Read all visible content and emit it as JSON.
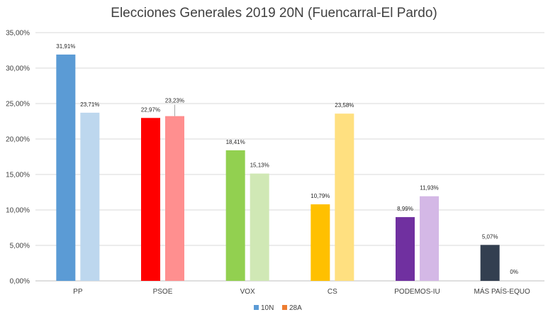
{
  "chart_data": {
    "type": "bar",
    "title": "Elecciones Generales 2019 20N (Fuencarral-El Pardo)",
    "categories": [
      "PP",
      "PSOE",
      "VOX",
      "CS",
      "PODEMOS-IU",
      "MÁS PAÍS-EQUO"
    ],
    "series": [
      {
        "name": "10N",
        "values": [
          31.91,
          22.97,
          18.41,
          10.79,
          8.99,
          5.07
        ],
        "labels": [
          "31,91%",
          "22,97%",
          "18,41%",
          "10,79%",
          "8,99%",
          "5,07%"
        ]
      },
      {
        "name": "28A",
        "values": [
          23.71,
          23.23,
          15.13,
          23.58,
          11.93,
          0
        ],
        "labels": [
          "23,71%",
          "23,23%",
          "15,13%",
          "23,58%",
          "11,93%",
          "0%"
        ]
      }
    ],
    "colors_10N": [
      "#5b9bd5",
      "#ff0000",
      "#92d050",
      "#ffc000",
      "#7030a0",
      "#333f50"
    ],
    "colors_28A": [
      "#bdd7ee",
      "#ff8f8f",
      "#d0e8b5",
      "#ffe080",
      "#d4b8e6",
      "#adb9ca"
    ],
    "legend_colors": [
      "#5b9bd5",
      "#ed7d31"
    ],
    "ylim": [
      0,
      35
    ],
    "yticks": [
      0,
      5,
      10,
      15,
      20,
      25,
      30,
      35
    ],
    "ytick_labels": [
      "0,00%",
      "5,00%",
      "10,00%",
      "15,00%",
      "20,00%",
      "25,00%",
      "30,00%",
      "35,00%"
    ],
    "xlabel": "",
    "ylabel": "",
    "grid": true,
    "legend_position": "bottom"
  }
}
